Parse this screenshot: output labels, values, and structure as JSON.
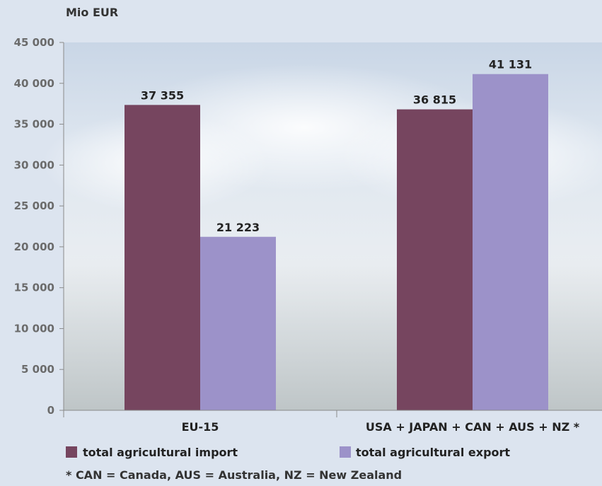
{
  "chart_data": {
    "type": "bar",
    "ylabel": "Mio EUR",
    "categories": [
      "EU-15",
      "USA + JAPAN + CAN + AUS + NZ *"
    ],
    "series": [
      {
        "name": "total agricultural import",
        "color": "#76455f",
        "values": [
          37355,
          36815
        ],
        "labels": [
          "37 355",
          "36 815"
        ]
      },
      {
        "name": "total agricultural export",
        "color": "#9c92c9",
        "values": [
          21223,
          41131
        ],
        "labels": [
          "21 223",
          "41 131"
        ]
      }
    ],
    "ylim": [
      0,
      45000
    ],
    "yticks": [
      0,
      5000,
      10000,
      15000,
      20000,
      25000,
      30000,
      35000,
      40000,
      45000
    ],
    "ytick_labels": [
      "0",
      "5 000",
      "10 000",
      "15 000",
      "20 000",
      "25 000",
      "30 000",
      "35 000",
      "40 000",
      "45 000"
    ],
    "grid": false,
    "legend": "bottom",
    "footnote": "* CAN = Canada, AUS = Australia, NZ = New Zealand"
  }
}
